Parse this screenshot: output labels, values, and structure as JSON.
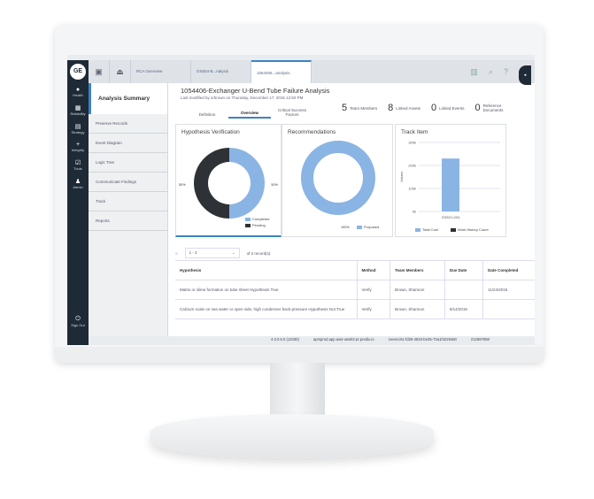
{
  "nav": {
    "logo": "GE",
    "items": [
      {
        "label": "Health",
        "icon": "heart-icon"
      },
      {
        "label": "Reliability",
        "icon": "grid-icon"
      },
      {
        "label": "Strategy",
        "icon": "document-icon"
      },
      {
        "label": "Integrity",
        "icon": "plus-icon"
      },
      {
        "label": "Tools",
        "icon": "checklist-icon"
      },
      {
        "label": "Admin",
        "icon": "user-icon"
      }
    ],
    "signout": "Sign Out"
  },
  "tabs": [
    {
      "label": "RCA Overview"
    },
    {
      "label": "GS504-B...nalysis"
    },
    {
      "label": "1054406...analysis"
    }
  ],
  "side": {
    "title": "Analysis Summary",
    "items": [
      "Preserve Records",
      "Event Diagram",
      "Logic Tree",
      "Communicate Findings",
      "Track",
      "Reports"
    ]
  },
  "header": {
    "title": "1054406-Exchanger U-Bend Tube Failure Analysis",
    "subtitle": "Last modified by srbrown on Thursday, December 17, 2015 12:50 PM",
    "stats": [
      {
        "value": "5",
        "label": "Team Members"
      },
      {
        "value": "8",
        "label": "Linked Assets"
      },
      {
        "value": "0",
        "label": "Linked Events"
      },
      {
        "value": "0",
        "label": "Reference Documents"
      }
    ]
  },
  "subtabs": [
    "Definition",
    "Overview",
    "Critical Success Factors"
  ],
  "chart_data": [
    {
      "type": "pie",
      "title": "Hypothesis Verification",
      "categories": [
        "Completed",
        "Pending"
      ],
      "values": [
        50,
        50
      ],
      "labels": [
        "50%",
        "50%"
      ],
      "colors": [
        "#8ab4e3",
        "#2e3135"
      ],
      "legend": "bottom-right"
    },
    {
      "type": "pie",
      "title": "Recommendations",
      "categories": [
        "Proposed"
      ],
      "values": [
        100
      ],
      "labels": [
        "100%"
      ],
      "colors": [
        "#8ab4e3"
      ],
      "legend": "bottom-right"
    },
    {
      "type": "bar",
      "title": "Track Item",
      "categories": [
        "GS521-004"
      ],
      "series": [
        {
          "name": "Total Cost",
          "values": [
            230000
          ],
          "color": "#8ab4e3"
        },
        {
          "name": "Work History Count",
          "values": [
            0
          ],
          "color": "#2e3135"
        }
      ],
      "ylabel": "Values",
      "ylim": [
        0,
        300000
      ],
      "yticks": [
        "0k",
        "100k",
        "200k",
        "300k"
      ],
      "grid": true,
      "legend": "bottom"
    }
  ],
  "pager": {
    "range": "1 - 2",
    "total": "of 2 record(s)"
  },
  "table": {
    "headers": [
      "Hypothesis",
      "Method",
      "Team Members",
      "Due Date",
      "Date Completed"
    ],
    "rows": [
      [
        "Matrix or slime formation on tube sheet Hypothesis True",
        "Verify",
        "Brown, Shannon",
        "",
        "11/24/2015"
      ],
      [
        "Calcium scale on sea water or open side, high condenser back-pressure Hypothesis Not True",
        "Verify",
        "Brown, Shannon",
        "9/14/2015",
        ""
      ]
    ]
  },
  "footer": [
    "4.3.0.5.0 (13330)",
    "apmprod.app.aws-usw02-pr.predix.io",
    "1eeecc51-fd26-4815-be35-73a1f4226460",
    "212587958"
  ]
}
